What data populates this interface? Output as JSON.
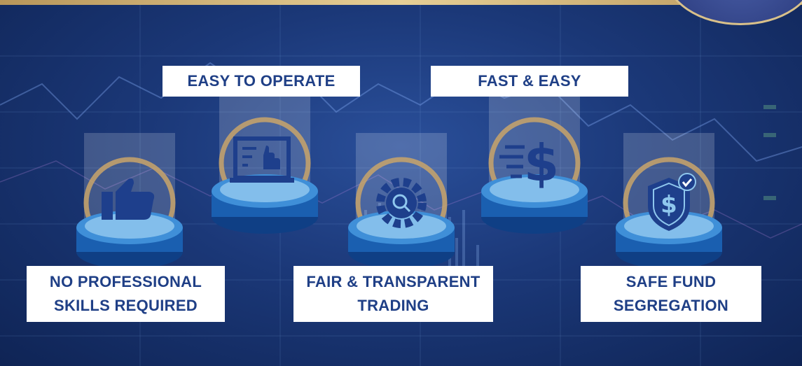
{
  "features": [
    {
      "id": "no-skills",
      "lines": [
        "NO PROFESSIONAL",
        "SKILLS REQUIRED"
      ],
      "icon": "thumbs-up-icon"
    },
    {
      "id": "easy",
      "lines": [
        "EASY TO OPERATE"
      ],
      "icon": "touch-screen-icon"
    },
    {
      "id": "fair",
      "lines": [
        "FAIR & TRANSPARENT",
        "TRADING"
      ],
      "icon": "gear-magnifier-icon"
    },
    {
      "id": "fast",
      "lines": [
        "FAST & EASY"
      ],
      "icon": "fast-dollar-icon"
    },
    {
      "id": "safe",
      "lines": [
        "SAFE FUND",
        "SEGREGATION"
      ],
      "icon": "shield-dollar-icon"
    }
  ],
  "colors": {
    "label_text": "#1f3f86",
    "accent_gold": "#c9a46a",
    "pedestal_blue": "#1a5fb0",
    "background": "#1b3878"
  }
}
